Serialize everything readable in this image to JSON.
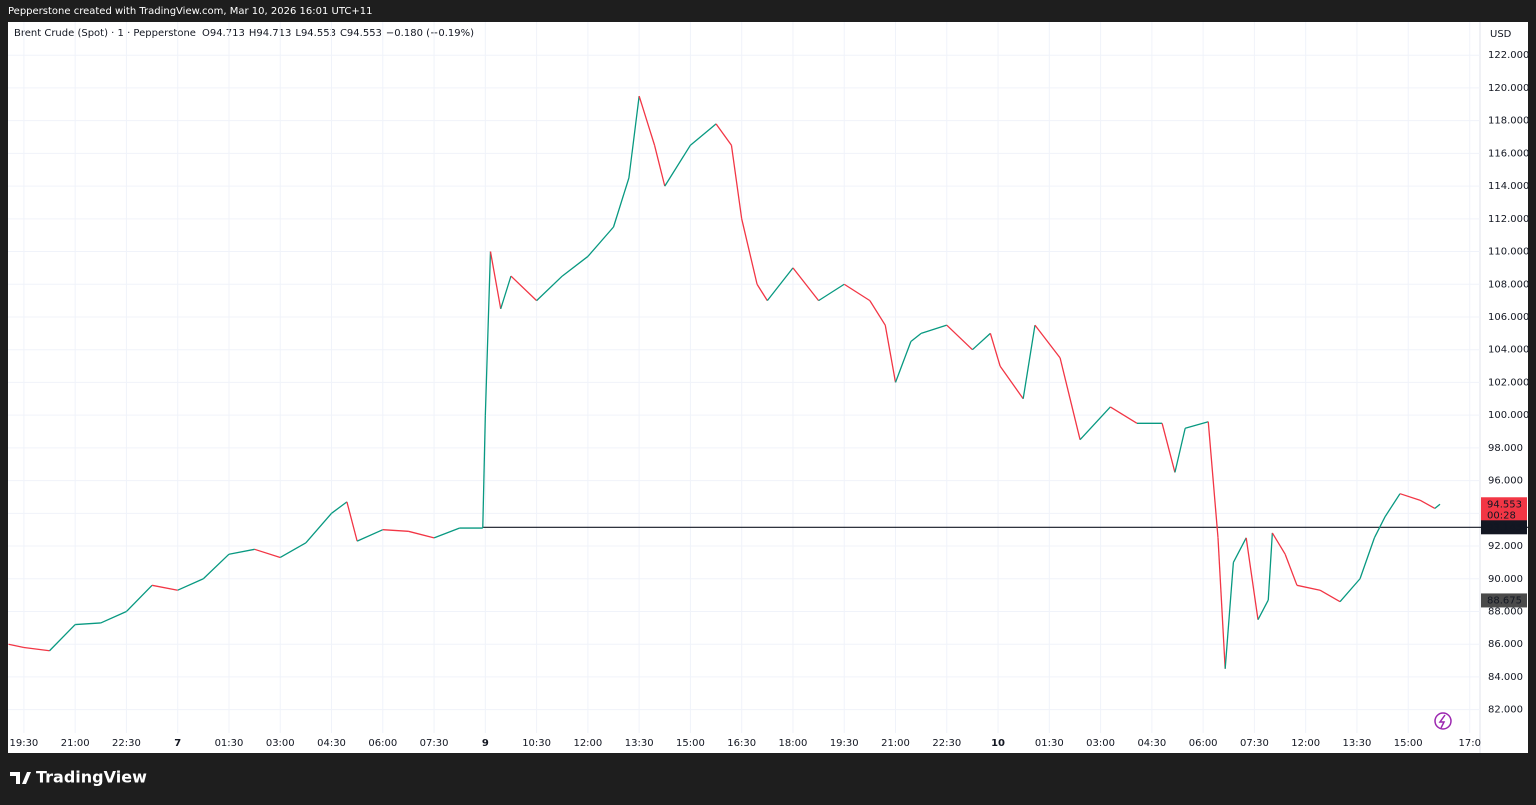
{
  "header": "Pepperstone created with TradingView.com, Mar 10, 2026 16:01 UTC+11",
  "footer": "TradingView",
  "chart_data": {
    "type": "line",
    "symbol": "Brent Crude (Spot) · 1 · Pepperstone",
    "ohlc": [
      {
        "key": "O",
        "value": "94.713"
      },
      {
        "key": "H",
        "value": "94.713"
      },
      {
        "key": "L",
        "value": "94.553"
      },
      {
        "key": "C",
        "value": "94.553"
      }
    ],
    "change": "−0.180 (−0.19%)",
    "currency": "USD",
    "up_color": "#089981",
    "down_color": "#f23645",
    "x": [
      -0.3,
      0,
      0.5,
      1,
      1.5,
      2,
      2.5,
      3,
      3.5,
      4,
      4.5,
      5,
      5.5,
      6,
      6.3,
      6.5,
      7,
      7.5,
      8,
      8.5,
      8.95,
      9,
      9.1,
      9.3,
      9.5,
      10,
      10.5,
      11,
      11.5,
      11.8,
      12,
      12.3,
      12.5,
      13,
      13.5,
      13.8,
      14,
      14.3,
      14.5,
      15,
      15.5,
      16,
      16.5,
      16.8,
      17,
      17.3,
      17.5,
      18,
      18.5,
      18.85,
      19.04,
      19.49,
      19.72,
      20.21,
      20.6,
      21.19,
      21.71,
      22.2,
      22.45,
      22.65,
      23.1,
      23.29,
      23.43,
      23.59,
      23.84,
      24.07,
      24.27,
      24.35,
      24.6,
      24.83,
      25.28,
      25.67,
      26.06,
      26.34,
      26.55,
      26.84,
      27.23,
      27.52,
      27.62
    ],
    "values": [
      86.0,
      85.8,
      85.6,
      87.2,
      87.3,
      88.0,
      89.6,
      89.3,
      90.0,
      91.5,
      91.8,
      91.3,
      92.2,
      94.0,
      94.7,
      92.3,
      93.0,
      92.9,
      92.5,
      93.1,
      93.1,
      100.0,
      110.0,
      106.5,
      108.5,
      107.0,
      108.5,
      109.7,
      111.5,
      114.5,
      119.5,
      116.5,
      114.0,
      116.5,
      117.8,
      116.5,
      112.0,
      108.0,
      107.0,
      109.0,
      107.0,
      108.0,
      107.0,
      105.5,
      102.0,
      104.5,
      105.0,
      105.5,
      104.0,
      105.0,
      103.0,
      101.0,
      105.5,
      103.5,
      98.5,
      100.5,
      99.5,
      99.5,
      96.5,
      99.2,
      99.6,
      92.5,
      84.5,
      91.0,
      92.5,
      87.5,
      88.7,
      92.8,
      91.5,
      89.6,
      89.3,
      88.6,
      90.0,
      92.5,
      93.8,
      95.2,
      94.8,
      94.3,
      94.553
    ],
    "xlim": [
      -0.31,
      28.4
    ],
    "xticks": [
      {
        "value": 0,
        "label": "19:30"
      },
      {
        "value": 1,
        "label": "21:00"
      },
      {
        "value": 2,
        "label": "22:30"
      },
      {
        "value": 3,
        "label": "7"
      },
      {
        "value": 4,
        "label": "01:30"
      },
      {
        "value": 5,
        "label": "03:00"
      },
      {
        "value": 6,
        "label": "04:30"
      },
      {
        "value": 7,
        "label": "06:00"
      },
      {
        "value": 8,
        "label": "07:30"
      },
      {
        "value": 9,
        "label": "9"
      },
      {
        "value": 10,
        "label": "10:30"
      },
      {
        "value": 11,
        "label": "12:00"
      },
      {
        "value": 12,
        "label": "13:30"
      },
      {
        "value": 13,
        "label": "15:00"
      },
      {
        "value": 14,
        "label": "16:30"
      },
      {
        "value": 15,
        "label": "18:00"
      },
      {
        "value": 16,
        "label": "19:30"
      },
      {
        "value": 17,
        "label": "21:00"
      },
      {
        "value": 18,
        "label": "22:30"
      },
      {
        "value": 19,
        "label": "10"
      },
      {
        "value": 20,
        "label": "01:30"
      },
      {
        "value": 21,
        "label": "03:00"
      },
      {
        "value": 22,
        "label": "04:30"
      },
      {
        "value": 23,
        "label": "06:00"
      },
      {
        "value": 24,
        "label": "07:30"
      },
      {
        "value": 25,
        "label": "12:00"
      },
      {
        "value": 26,
        "label": "13:30"
      },
      {
        "value": 27,
        "label": "15:00"
      },
      {
        "value": 28.2,
        "label": "17:0"
      }
    ],
    "ylim": [
      79.35,
      124.03
    ],
    "yticks": [
      {
        "value": 82,
        "label": "82.000"
      },
      {
        "value": 84,
        "label": "84.000"
      },
      {
        "value": 86,
        "label": "86.000"
      },
      {
        "value": 88,
        "label": "88.000"
      },
      {
        "value": 90,
        "label": "90.000"
      },
      {
        "value": 92,
        "label": "92.000"
      },
      {
        "value": 94,
        "label": "94.000"
      },
      {
        "value": 96,
        "label": "96.000"
      },
      {
        "value": 98,
        "label": "98.000"
      },
      {
        "value": 100,
        "label": "100.000"
      },
      {
        "value": 102,
        "label": "102.000"
      },
      {
        "value": 104,
        "label": "104.000"
      },
      {
        "value": 106,
        "label": "106.000"
      },
      {
        "value": 108,
        "label": "108.000"
      },
      {
        "value": 110,
        "label": "110.000"
      },
      {
        "value": 112,
        "label": "112.000"
      },
      {
        "value": 114,
        "label": "114.000"
      },
      {
        "value": 116,
        "label": "116.000"
      },
      {
        "value": 118,
        "label": "118.000"
      },
      {
        "value": 120,
        "label": "120.000"
      },
      {
        "value": 122,
        "label": "122.000"
      }
    ],
    "grid": true,
    "ref_line": {
      "value": 93.145,
      "x_start": 8.95,
      "color": "#131722"
    },
    "last_price": {
      "value": 94.553,
      "countdown": "00:28",
      "color": "#f23645"
    },
    "marker_price": {
      "value": 88.675,
      "color": "#4a4a4a"
    }
  }
}
